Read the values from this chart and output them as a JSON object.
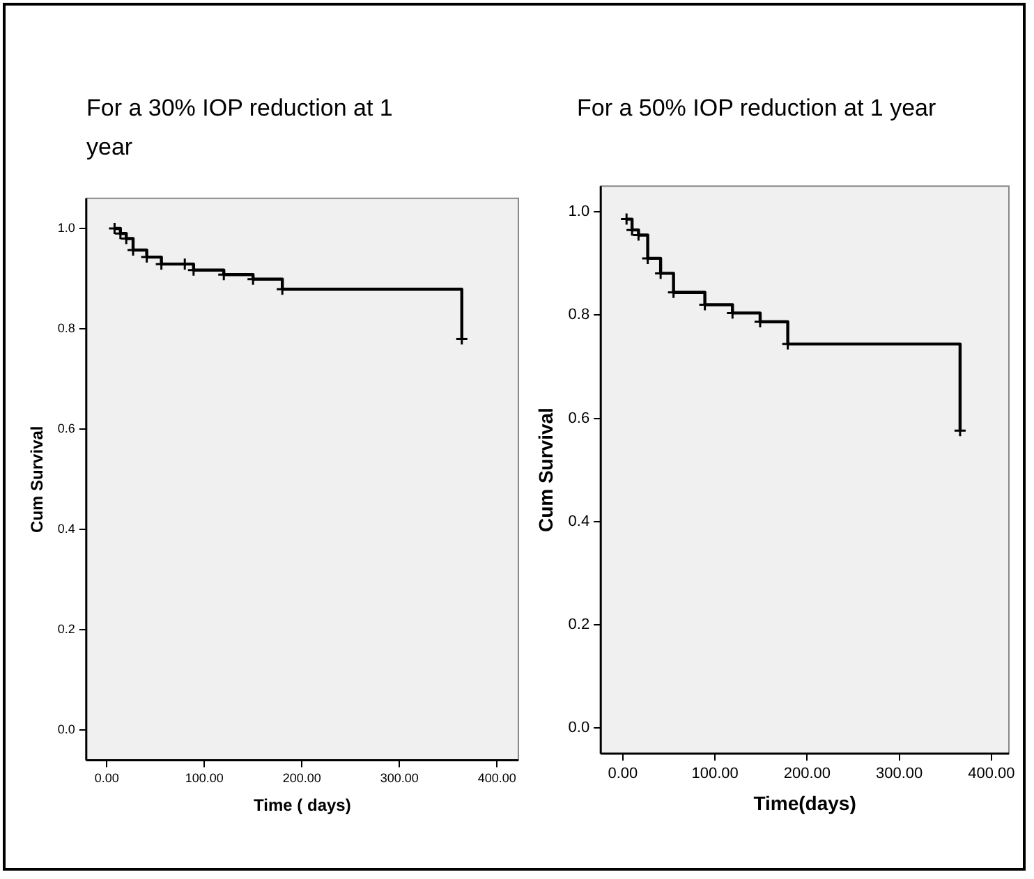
{
  "chart_data": [
    {
      "type": "step",
      "title": "For a 30% IOP reduction at 1 year",
      "xlabel": "Time ( days)",
      "ylabel": "Cum Survival",
      "xlim": [
        -21,
        422
      ],
      "ylim": [
        -0.06,
        1.06
      ],
      "xticks": [
        {
          "value": 0,
          "label": "0.00"
        },
        {
          "value": 100,
          "label": "100.00"
        },
        {
          "value": 200,
          "label": "200.00"
        },
        {
          "value": 300,
          "label": "300.00"
        },
        {
          "value": 400,
          "label": "400.00"
        }
      ],
      "yticks": [
        {
          "value": 0,
          "label": "0.0"
        },
        {
          "value": 0.2,
          "label": "0.2"
        },
        {
          "value": 0.4,
          "label": "0.4"
        },
        {
          "value": 0.6,
          "label": "0.6"
        },
        {
          "value": 0.8,
          "label": "0.8"
        },
        {
          "value": 1,
          "label": "1.0"
        }
      ],
      "grid": false,
      "legend": false,
      "marker": "cross",
      "line_style": "solid",
      "series": [
        {
          "color": "#000000",
          "x": [
            8,
            14,
            20,
            27,
            41,
            56,
            80,
            89,
            120,
            150,
            180,
            364
          ],
          "values": [
            1.0,
            0.99,
            0.98,
            0.957,
            0.943,
            0.929,
            0.929,
            0.917,
            0.908,
            0.899,
            0.879,
            0.78
          ]
        }
      ]
    },
    {
      "type": "step",
      "title": "For a 50% IOP reduction at 1 year",
      "xlabel": "Time(days)",
      "ylabel": "Cum Survival",
      "xlim": [
        -24,
        419
      ],
      "ylim": [
        -0.05,
        1.05
      ],
      "xticks": [
        {
          "value": 0,
          "label": "0.00"
        },
        {
          "value": 100,
          "label": "100.00"
        },
        {
          "value": 200,
          "label": "200.00"
        },
        {
          "value": 300,
          "label": "300.00"
        },
        {
          "value": 400,
          "label": "400.00"
        }
      ],
      "yticks": [
        {
          "value": 0,
          "label": "0.0"
        },
        {
          "value": 0.2,
          "label": "0.2"
        },
        {
          "value": 0.4,
          "label": "0.4"
        },
        {
          "value": 0.6,
          "label": "0.6"
        },
        {
          "value": 0.8,
          "label": "0.8"
        },
        {
          "value": 1,
          "label": "1.0"
        }
      ],
      "grid": false,
      "legend": false,
      "marker": "cross",
      "line_style": "solid",
      "series": [
        {
          "color": "#000000",
          "x": [
            4,
            10,
            17,
            27,
            41,
            55,
            89,
            119,
            149,
            179,
            366
          ],
          "values": [
            0.986,
            0.965,
            0.955,
            0.91,
            0.881,
            0.844,
            0.82,
            0.804,
            0.787,
            0.744,
            0.576
          ]
        }
      ]
    }
  ]
}
